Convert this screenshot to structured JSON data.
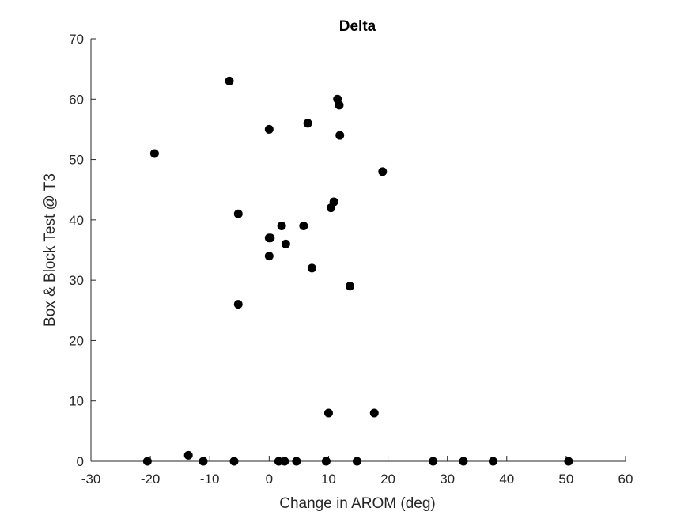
{
  "chart_data": {
    "type": "scatter",
    "title": "Delta",
    "xlabel": "Change in AROM (deg)",
    "ylabel": "Box & Block Test @ T3",
    "xlim": [
      -30,
      60
    ],
    "ylim": [
      0,
      70
    ],
    "xticks": [
      -30,
      -20,
      -10,
      0,
      10,
      20,
      30,
      40,
      50,
      60
    ],
    "yticks": [
      0,
      10,
      20,
      30,
      40,
      50,
      60,
      70
    ],
    "grid": false,
    "legend": "none",
    "marker_color": "#000000",
    "axis_color": "#262626",
    "points": [
      {
        "x": -6.7,
        "y": 63
      },
      {
        "x": 11.5,
        "y": 60
      },
      {
        "x": 11.8,
        "y": 59
      },
      {
        "x": 6.5,
        "y": 56
      },
      {
        "x": 0.0,
        "y": 55
      },
      {
        "x": 11.9,
        "y": 54
      },
      {
        "x": -19.3,
        "y": 51
      },
      {
        "x": 19.1,
        "y": 48
      },
      {
        "x": 10.9,
        "y": 43
      },
      {
        "x": 10.4,
        "y": 42
      },
      {
        "x": -5.2,
        "y": 41
      },
      {
        "x": 2.1,
        "y": 39
      },
      {
        "x": 5.8,
        "y": 39
      },
      {
        "x": 0.0,
        "y": 37
      },
      {
        "x": 0.2,
        "y": 37
      },
      {
        "x": 2.8,
        "y": 36
      },
      {
        "x": 0.0,
        "y": 34
      },
      {
        "x": 7.2,
        "y": 32
      },
      {
        "x": 13.6,
        "y": 29
      },
      {
        "x": -5.2,
        "y": 26
      },
      {
        "x": 10.0,
        "y": 8
      },
      {
        "x": 17.7,
        "y": 8
      },
      {
        "x": -13.6,
        "y": 1
      },
      {
        "x": -20.5,
        "y": 0
      },
      {
        "x": -11.1,
        "y": 0
      },
      {
        "x": -5.9,
        "y": 0
      },
      {
        "x": 1.6,
        "y": 0
      },
      {
        "x": 2.6,
        "y": 0
      },
      {
        "x": 4.6,
        "y": 0
      },
      {
        "x": 9.6,
        "y": 0
      },
      {
        "x": 14.8,
        "y": 0
      },
      {
        "x": 27.6,
        "y": 0
      },
      {
        "x": 32.7,
        "y": 0
      },
      {
        "x": 37.7,
        "y": 0
      },
      {
        "x": 50.4,
        "y": 0
      }
    ]
  }
}
